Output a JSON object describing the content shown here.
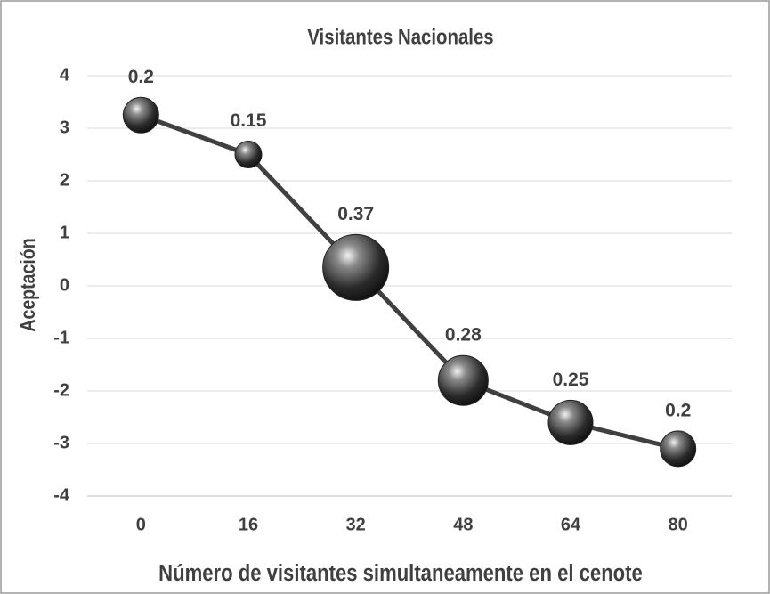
{
  "chart_data": {
    "type": "bubble",
    "title": "Visitantes Nacionales",
    "xlabel": "Número de visitantes simultaneamente en el cenote",
    "ylabel": "Aceptación",
    "x": [
      0,
      16,
      32,
      48,
      64,
      80
    ],
    "values": [
      3.25,
      2.5,
      0.35,
      -1.8,
      -2.6,
      -3.1
    ],
    "sizes": [
      0.2,
      0.15,
      0.37,
      0.28,
      0.25,
      0.2
    ],
    "xlim": [
      -8,
      88
    ],
    "xticks": [
      0,
      16,
      32,
      48,
      64,
      80
    ],
    "ylim": [
      -4,
      4
    ],
    "yticks": [
      -4,
      -3,
      -2,
      -1,
      0,
      1,
      2,
      3,
      4
    ],
    "grid": true,
    "color": "#404040"
  }
}
